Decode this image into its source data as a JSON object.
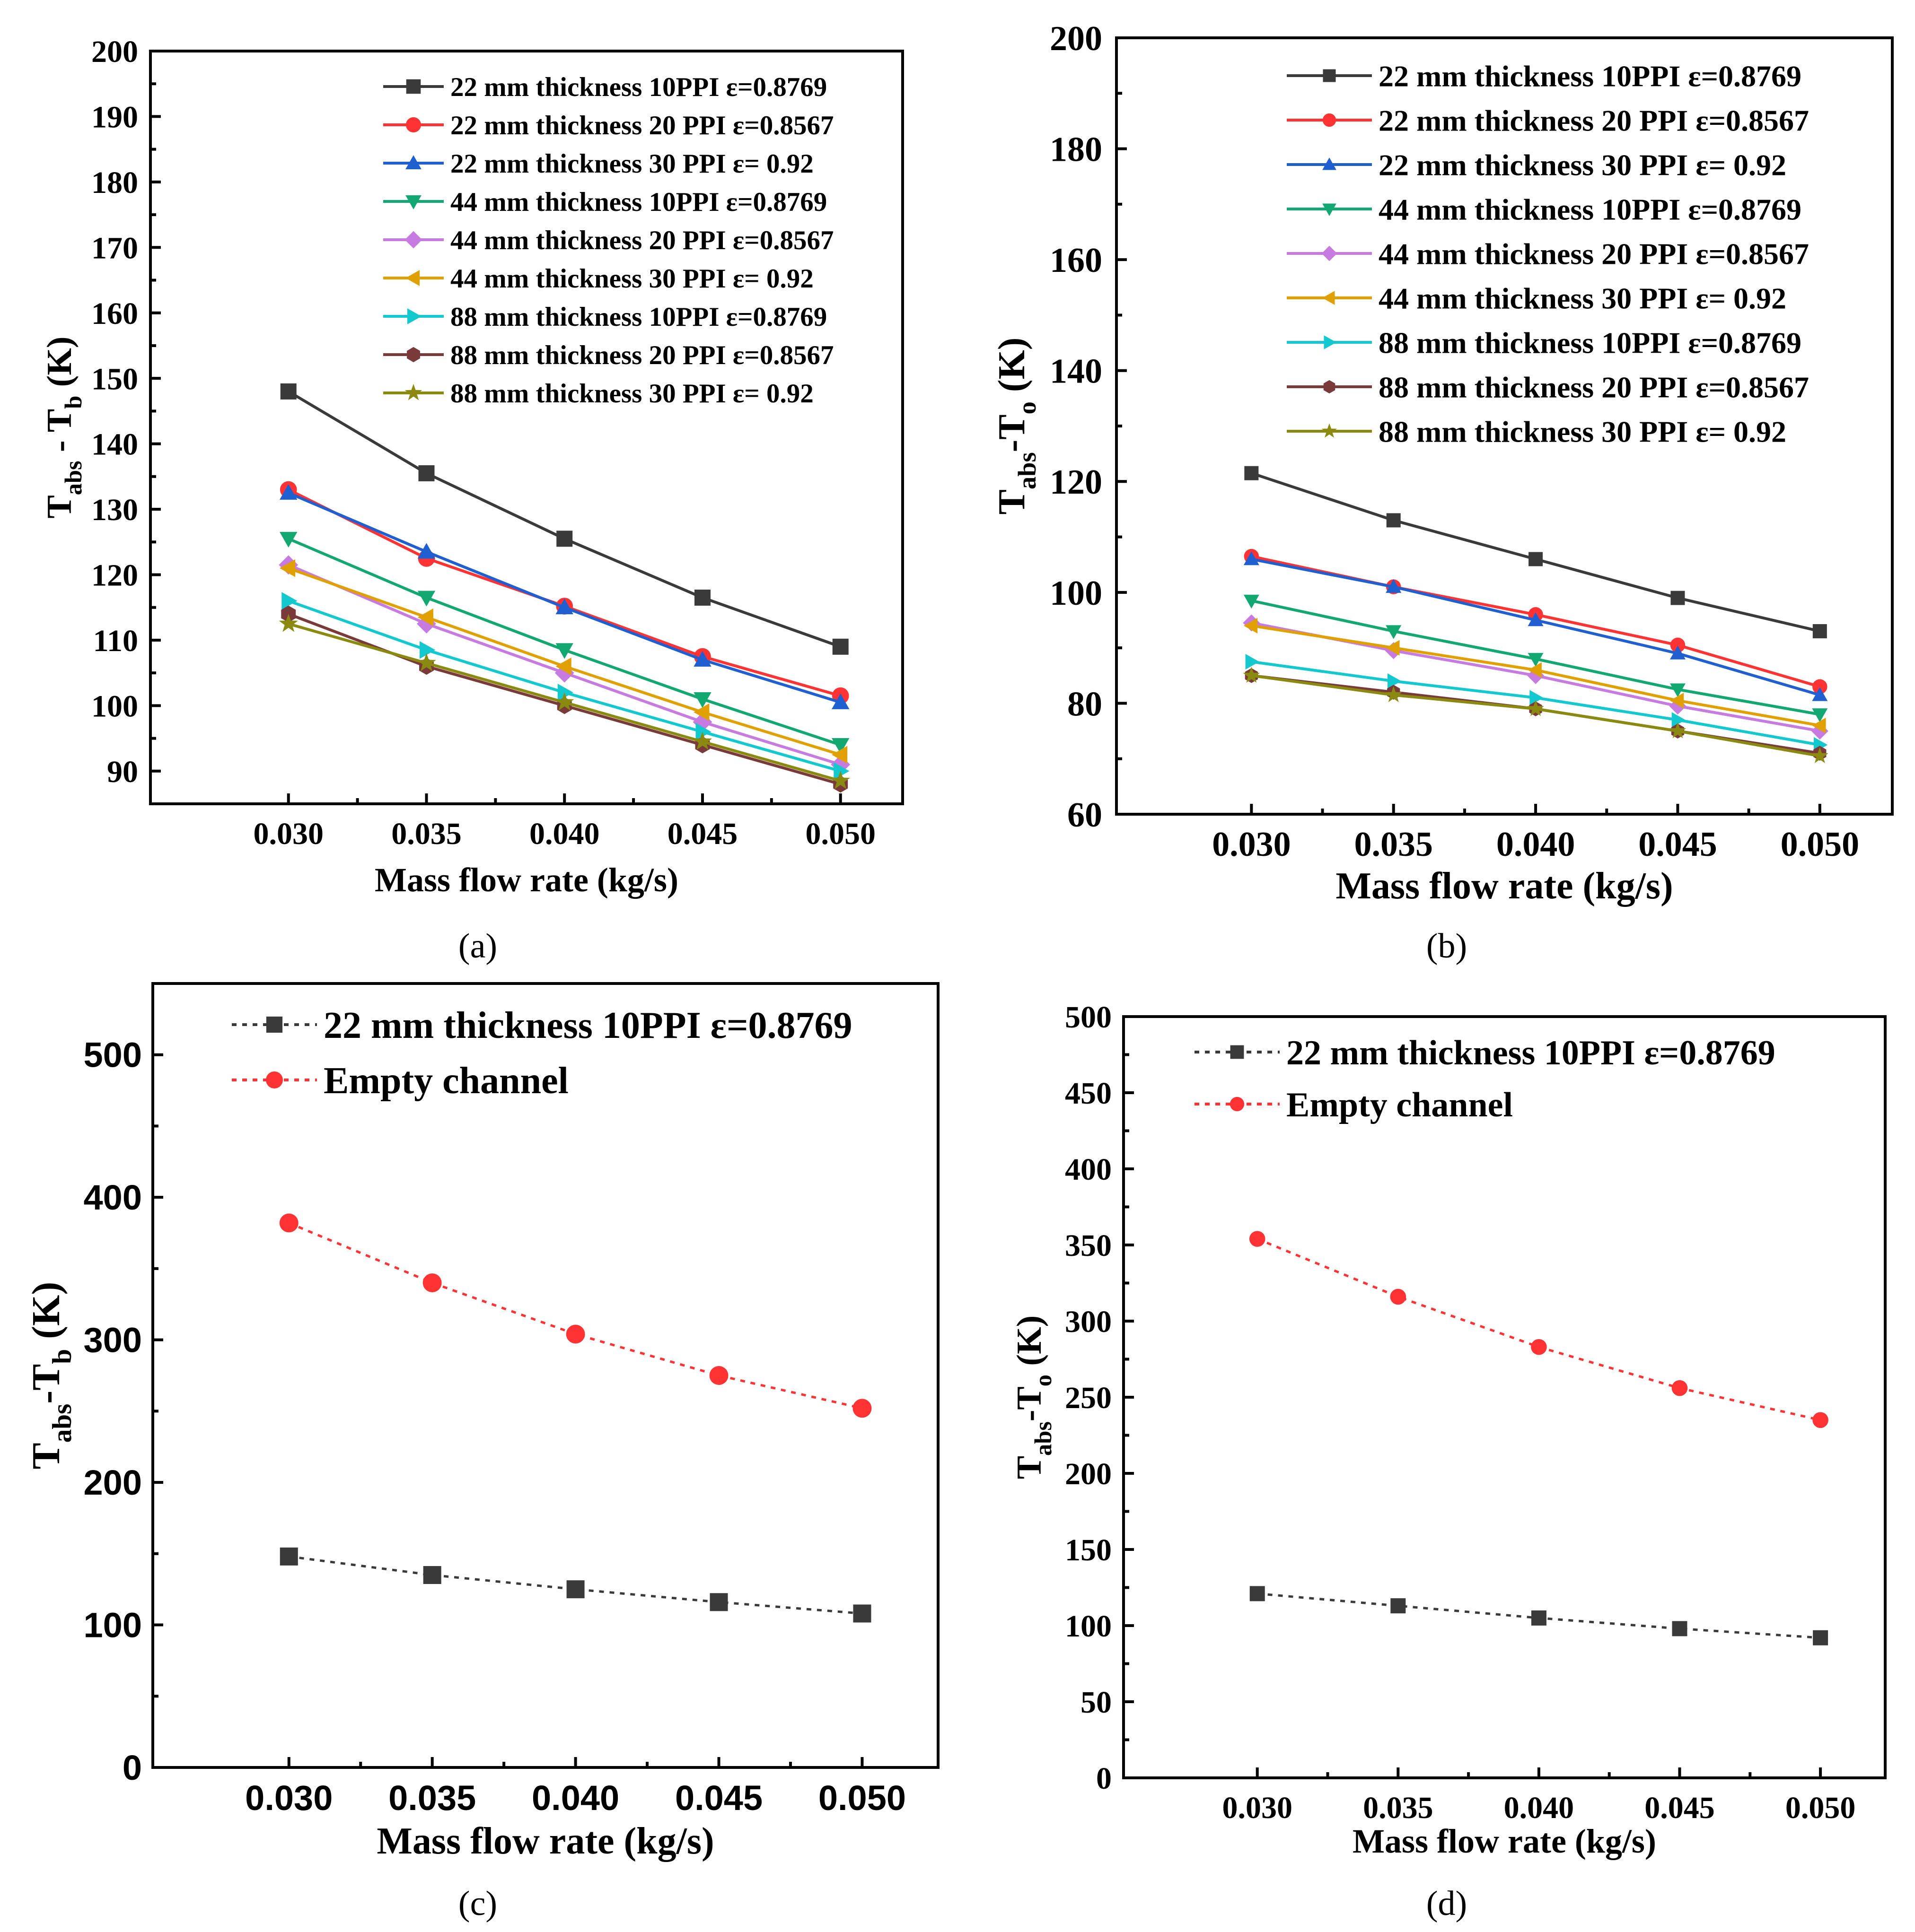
{
  "figure": {
    "captions": [
      "(a)",
      "(b)",
      "(c)",
      "(d)"
    ]
  },
  "chart_data": [
    {
      "type": "line",
      "panel": "a",
      "caption": "(a)",
      "xlabel": "Mass flow rate (kg/s)",
      "ylabel": {
        "main": "T",
        "sub1": "abs",
        "mid": " - T",
        "sub2": "b",
        "tail": " (K)"
      },
      "xlim": [
        0.025,
        0.05225
      ],
      "ylim": [
        85,
        200
      ],
      "xticks": [
        0.03,
        0.035,
        0.04,
        0.045,
        0.05
      ],
      "xtick_labels": [
        "0.030",
        "0.035",
        "0.040",
        "0.045",
        "0.050"
      ],
      "yticks": [
        90,
        100,
        110,
        120,
        130,
        140,
        150,
        160,
        170,
        180,
        190,
        200
      ],
      "ytick_labels": [
        "90",
        "100",
        "110",
        "120",
        "130",
        "140",
        "150",
        "160",
        "170",
        "180",
        "190",
        "200"
      ],
      "legend_position": "top-right",
      "x": [
        0.03,
        0.035,
        0.04,
        0.045,
        0.05
      ],
      "series": [
        {
          "name": "22 mm thickness 10PPI ε=0.8769",
          "color": "#3a3a3a",
          "marker": "square",
          "line": "solid",
          "values": [
            148,
            135.5,
            125.5,
            116.5,
            109
          ]
        },
        {
          "name": "22 mm thickness 20 PPI ε=0.8567",
          "color": "#ff3333",
          "marker": "circle",
          "line": "solid",
          "values": [
            133,
            122.5,
            115.2,
            107.5,
            101.5
          ]
        },
        {
          "name": "22 mm thickness 30 PPI ε= 0.92",
          "color": "#1f5fd0",
          "marker": "triangle-up",
          "line": "solid",
          "values": [
            132.5,
            123.5,
            115,
            107,
            100.5
          ]
        },
        {
          "name": "44 mm thickness 10PPI ε=0.8769",
          "color": "#13a772",
          "marker": "triangle-down",
          "line": "solid",
          "values": [
            125.5,
            116.5,
            108.5,
            101,
            94
          ]
        },
        {
          "name": "44 mm thickness 20 PPI ε=0.8567",
          "color": "#c77ae0",
          "marker": "diamond",
          "line": "solid",
          "values": [
            121.5,
            112.5,
            105,
            97.5,
            91
          ]
        },
        {
          "name": "44 mm thickness 30 PPI ε= 0.92",
          "color": "#e0a000",
          "marker": "triangle-left",
          "line": "solid",
          "values": [
            121,
            113.5,
            106,
            99,
            92.5
          ]
        },
        {
          "name": "88 mm thickness 10PPI ε=0.8769",
          "color": "#14c8d0",
          "marker": "triangle-right",
          "line": "solid",
          "values": [
            116,
            108.5,
            102,
            96,
            90
          ]
        },
        {
          "name": "88 mm thickness 20 PPI ε=0.8567",
          "color": "#7a3a3a",
          "marker": "hexagon",
          "line": "solid",
          "values": [
            114,
            106,
            100,
            94,
            88
          ]
        },
        {
          "name": "88 mm thickness 30 PPI ε= 0.92",
          "color": "#8a8a10",
          "marker": "star",
          "line": "solid",
          "values": [
            112.5,
            106.5,
            100.5,
            94.5,
            88.5
          ]
        }
      ]
    },
    {
      "type": "line",
      "panel": "b",
      "caption": "(b)",
      "xlabel": "Mass flow rate (kg/s)",
      "ylabel": {
        "main": "T",
        "sub1": "abs",
        "mid": "-T",
        "sub2": "o",
        "tail": " (K)"
      },
      "xlim": [
        0.02525,
        0.05255
      ],
      "ylim": [
        60,
        200
      ],
      "xticks": [
        0.03,
        0.035,
        0.04,
        0.045,
        0.05
      ],
      "xtick_labels": [
        "0.030",
        "0.035",
        "0.040",
        "0.045",
        "0.050"
      ],
      "yticks": [
        60,
        80,
        100,
        120,
        140,
        160,
        180,
        200
      ],
      "ytick_labels": [
        "60",
        "80",
        "100",
        "120",
        "140",
        "160",
        "180",
        "200"
      ],
      "legend_position": "top-right",
      "x": [
        0.03,
        0.035,
        0.04,
        0.045,
        0.05
      ],
      "series": [
        {
          "name": "22 mm thickness 10PPI ε=0.8769",
          "color": "#3a3a3a",
          "marker": "square",
          "line": "solid",
          "values": [
            121.5,
            113,
            106,
            99,
            93
          ]
        },
        {
          "name": "22 mm thickness 20 PPI ε=0.8567",
          "color": "#ff3333",
          "marker": "circle",
          "line": "solid",
          "values": [
            106.5,
            101,
            96,
            90.5,
            83
          ]
        },
        {
          "name": "22 mm thickness 30 PPI ε= 0.92",
          "color": "#1f5fd0",
          "marker": "triangle-up",
          "line": "solid",
          "values": [
            106,
            101,
            95,
            89,
            81.5
          ]
        },
        {
          "name": "44 mm thickness 10PPI ε=0.8769",
          "color": "#13a772",
          "marker": "triangle-down",
          "line": "solid",
          "values": [
            98.5,
            93,
            88,
            82.5,
            78
          ]
        },
        {
          "name": "44 mm thickness 20 PPI ε=0.8567",
          "color": "#c77ae0",
          "marker": "diamond",
          "line": "solid",
          "values": [
            94.5,
            89.5,
            85,
            79.5,
            75
          ]
        },
        {
          "name": "44 mm thickness 30 PPI ε= 0.92",
          "color": "#e0a000",
          "marker": "triangle-left",
          "line": "solid",
          "values": [
            94,
            90,
            86,
            80.5,
            76
          ]
        },
        {
          "name": "88 mm thickness 10PPI ε=0.8769",
          "color": "#14c8d0",
          "marker": "triangle-right",
          "line": "solid",
          "values": [
            87.5,
            84,
            81,
            77,
            72.5
          ]
        },
        {
          "name": "88 mm thickness 20 PPI ε=0.8567",
          "color": "#7a3a3a",
          "marker": "hexagon",
          "line": "solid",
          "values": [
            85,
            82,
            79,
            75,
            71
          ]
        },
        {
          "name": "88 mm thickness 30 PPI ε= 0.92",
          "color": "#8a8a10",
          "marker": "star",
          "line": "solid",
          "values": [
            85,
            81.5,
            79,
            75,
            70.5
          ]
        }
      ]
    },
    {
      "type": "line",
      "panel": "c",
      "caption": "(c)",
      "xlabel": "Mass flow rate (kg/s)",
      "ylabel": {
        "main": "T",
        "sub1": "abs",
        "mid": "-T",
        "sub2": "b",
        "tail": " (K)"
      },
      "xlim": [
        0.02525,
        0.05265
      ],
      "ylim": [
        0,
        550
      ],
      "xticks": [
        0.03,
        0.035,
        0.04,
        0.045,
        0.05
      ],
      "xtick_labels": [
        "0.030",
        "0.035",
        "0.040",
        "0.045",
        "0.050"
      ],
      "yticks": [
        0,
        100,
        200,
        300,
        400,
        500
      ],
      "ytick_labels": [
        "0",
        "100",
        "200",
        "300",
        "400",
        "500"
      ],
      "legend_position": "top-left",
      "x": [
        0.03,
        0.035,
        0.04,
        0.045,
        0.05
      ],
      "series": [
        {
          "name": "22 mm thickness 10PPI ε=0.8769",
          "color": "#3a3a3a",
          "marker": "square",
          "line": "dotted",
          "values": [
            148,
            135,
            125,
            116,
            108
          ]
        },
        {
          "name": "Empty channel",
          "color": "#ff3333",
          "marker": "circle",
          "line": "dotted",
          "values": [
            382,
            340,
            304,
            275,
            252
          ]
        }
      ]
    },
    {
      "type": "line",
      "panel": "d",
      "caption": "(d)",
      "xlabel": "Mass flow rate (kg/s)",
      "ylabel": {
        "main": "T",
        "sub1": "abs",
        "mid": "-T",
        "sub2": "o",
        "tail": " (K)"
      },
      "xlim": [
        0.02525,
        0.0523
      ],
      "ylim": [
        0,
        500
      ],
      "xticks": [
        0.03,
        0.035,
        0.04,
        0.045,
        0.05
      ],
      "xtick_labels": [
        "0.030",
        "0.035",
        "0.040",
        "0.045",
        "0.050"
      ],
      "yticks": [
        0,
        50,
        100,
        150,
        200,
        250,
        300,
        350,
        400,
        450,
        500
      ],
      "ytick_labels": [
        "0",
        "50",
        "100",
        "150",
        "200",
        "250",
        "300",
        "350",
        "400",
        "450",
        "500"
      ],
      "legend_position": "top-left",
      "x": [
        0.03,
        0.035,
        0.04,
        0.045,
        0.05
      ],
      "series": [
        {
          "name": "22 mm thickness 10PPI ε=0.8769",
          "color": "#3a3a3a",
          "marker": "square",
          "line": "dotted",
          "values": [
            121,
            113,
            105,
            98,
            92
          ]
        },
        {
          "name": "Empty channel",
          "color": "#ff3333",
          "marker": "circle",
          "line": "dotted",
          "values": [
            354,
            316,
            283,
            256,
            235
          ]
        }
      ]
    }
  ]
}
